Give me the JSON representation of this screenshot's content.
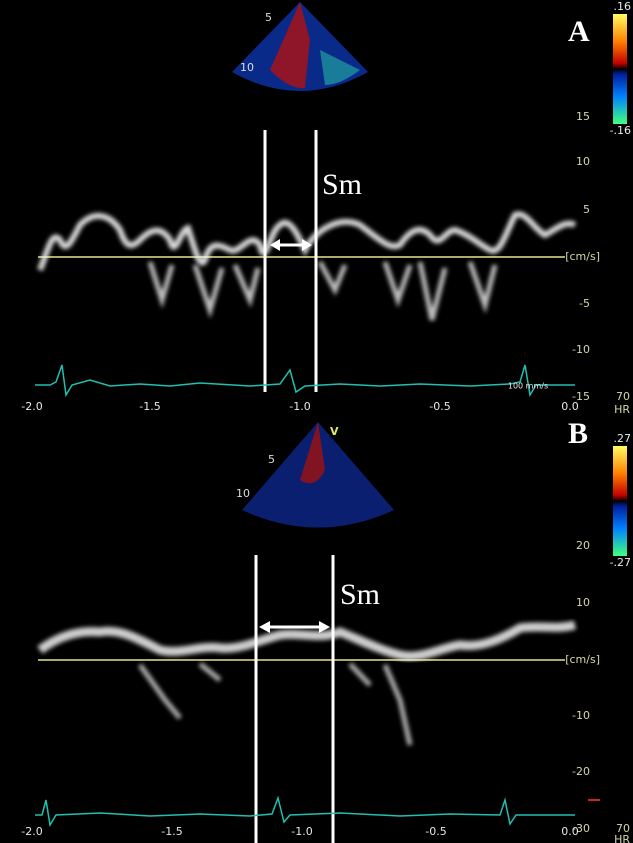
{
  "panels": [
    {
      "label": "A",
      "colorbar": [
        ".16",
        "-.16"
      ],
      "sector_depths": [
        "5",
        "10"
      ],
      "velocity_ticks": [
        "15",
        "10",
        "5",
        "-5",
        "-10",
        "-15"
      ],
      "unit": "[cm/s]",
      "heart_rate": "70",
      "heart_rate_label": "HR",
      "time_ticks": [
        "-2.0",
        "-1.5",
        "-1.0",
        "-0.5",
        "0.0"
      ],
      "sweep_speed": "100 mm/s",
      "annotation": "Sm"
    },
    {
      "label": "B",
      "colorbar": [
        ".27",
        "-.27"
      ],
      "sector_marker": "V",
      "sector_depths": [
        "5",
        "10"
      ],
      "velocity_ticks": [
        "20",
        "10",
        "-10",
        "-20",
        "-30"
      ],
      "unit": "[cm/s]",
      "heart_rate": "70",
      "heart_rate_label": "HR",
      "time_ticks": [
        "-2.0",
        "-1.5",
        "-1.0",
        "-0.5",
        "0.0"
      ],
      "annotation": "Sm"
    }
  ]
}
